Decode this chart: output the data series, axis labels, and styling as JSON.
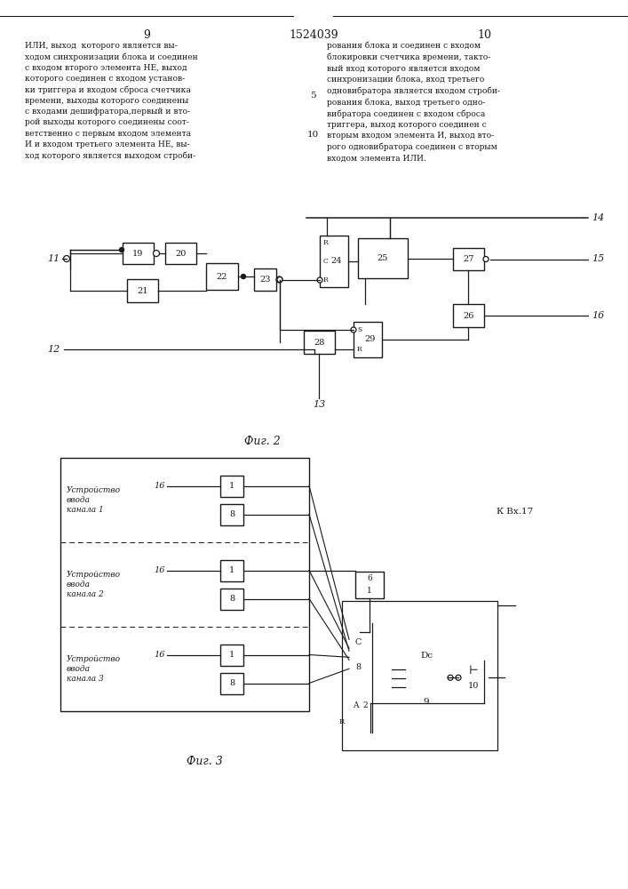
{
  "page_title": "1524039",
  "page_left": "9",
  "page_right": "10",
  "fig2_caption": "Фиг. 2",
  "fig3_caption": "Фиг. 3",
  "bg_color": "#ffffff",
  "line_color": "#1a1a1a",
  "text_left": "ИЛИ, выход  которого является вы-\nходом синхронизации блока и соединен\nс входом второго элемента НЕ, выход\nкоторого соединен с входом установ-\nки триггера и входом сброса счетчика\nвремени, выходы которого соединены\nс входами дешифратора,первый и вто-\nрой выходы которого соединены соот-\nветственно с первым входом элемента\nИ и входом третьего элемента НЕ, вы-\nход которого является выходом строби-",
  "text_right": "рования блока и соединен с входом\nблокировки счетчика времени, такто-\nвый вход которого является входом\nсинхронизации блока, вход третьего\nодновибратора является входом строби-\nрования блока, выход третьего одно-\nвибратора соединен с входом сброса\nтриггера, выход которого соединен с\nвторым входом элемента И, выход вто-\nрого одновибратора соединен с вторым\nвходом элемента ИЛИ."
}
